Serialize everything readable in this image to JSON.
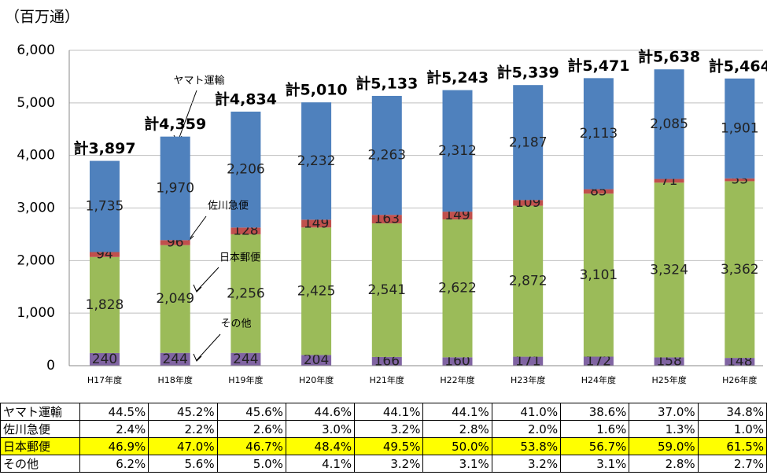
{
  "chart_data": {
    "type": "stacked_bar",
    "y_axis_label": "（百万通）",
    "categories": [
      "H17年度",
      "H18年度",
      "H19年度",
      "H20年度",
      "H21年度",
      "H22年度",
      "H23年度",
      "H24年度",
      "H25年度",
      "H26年度"
    ],
    "series": [
      {
        "name": "その他",
        "color": "#8064a2",
        "values": [
          240,
          244,
          244,
          204,
          166,
          160,
          171,
          172,
          158,
          148
        ],
        "value_labels": [
          "240",
          "244",
          "244",
          "204",
          "166",
          "160",
          "171",
          "172",
          "158",
          "148"
        ]
      },
      {
        "name": "日本郵便",
        "color": "#9bbb59",
        "values": [
          1828,
          2049,
          2256,
          2425,
          2541,
          2622,
          2872,
          3101,
          3324,
          3362
        ],
        "value_labels": [
          "1,828",
          "2,049",
          "2,256",
          "2,425",
          "2,541",
          "2,622",
          "2,872",
          "3,101",
          "3,324",
          "3,362"
        ]
      },
      {
        "name": "佐川急便",
        "color": "#c0504d",
        "values": [
          94,
          96,
          128,
          149,
          163,
          149,
          109,
          85,
          71,
          53
        ],
        "value_labels": [
          "94",
          "96",
          "128",
          "149",
          "163",
          "149",
          "109",
          "85",
          "71",
          "53"
        ]
      },
      {
        "name": "ヤマト運輸",
        "color": "#4f81bd",
        "values": [
          1735,
          1970,
          2206,
          2232,
          2263,
          2312,
          2187,
          2113,
          2085,
          1901
        ],
        "value_labels": [
          "1,735",
          "1,970",
          "2,206",
          "2,232",
          "2,263",
          "2,312",
          "2,187",
          "2,113",
          "2,085",
          "1,901"
        ]
      }
    ],
    "totals": {
      "values": [
        3897,
        4359,
        4834,
        5010,
        5133,
        5243,
        5339,
        5471,
        5638,
        5464
      ],
      "value_labels": [
        "計3,897",
        "計4,359",
        "計4,834",
        "計5,010",
        "計5,133",
        "計5,243",
        "計5,339",
        "計5,471",
        "計5,638",
        "計5,464"
      ]
    },
    "ylim": [
      0,
      6000
    ],
    "yticks": [
      0,
      {
        "value": 1000,
        "label": "1,000"
      },
      {
        "value": 2000,
        "label": "2,000"
      },
      {
        "value": 3000,
        "label": "3,000"
      },
      {
        "value": 4000,
        "label": "4,000"
      },
      {
        "value": 5000,
        "label": "5,000"
      },
      {
        "value": 6000,
        "label": "6,000"
      }
    ],
    "grid": true,
    "annotations": [
      "ヤマト運輸",
      "佐川急便",
      "日本郵便",
      "その他"
    ]
  },
  "table": {
    "highlight_row": 2,
    "rows": [
      [
        "ヤマト運輸",
        "44.5%",
        "45.2%",
        "45.6%",
        "44.6%",
        "44.1%",
        "44.1%",
        "41.0%",
        "38.6%",
        "37.0%",
        "34.8%"
      ],
      [
        "佐川急便",
        "2.4%",
        "2.2%",
        "2.6%",
        "3.0%",
        "3.2%",
        "2.8%",
        "2.0%",
        "1.6%",
        "1.3%",
        "1.0%"
      ],
      [
        "日本郵便",
        "46.9%",
        "47.0%",
        "46.7%",
        "48.4%",
        "49.5%",
        "50.0%",
        "53.8%",
        "56.7%",
        "59.0%",
        "61.5%"
      ],
      [
        "その他",
        "6.2%",
        "5.6%",
        "5.0%",
        "4.1%",
        "3.2%",
        "3.1%",
        "3.2%",
        "3.1%",
        "2.8%",
        "2.7%"
      ]
    ]
  }
}
